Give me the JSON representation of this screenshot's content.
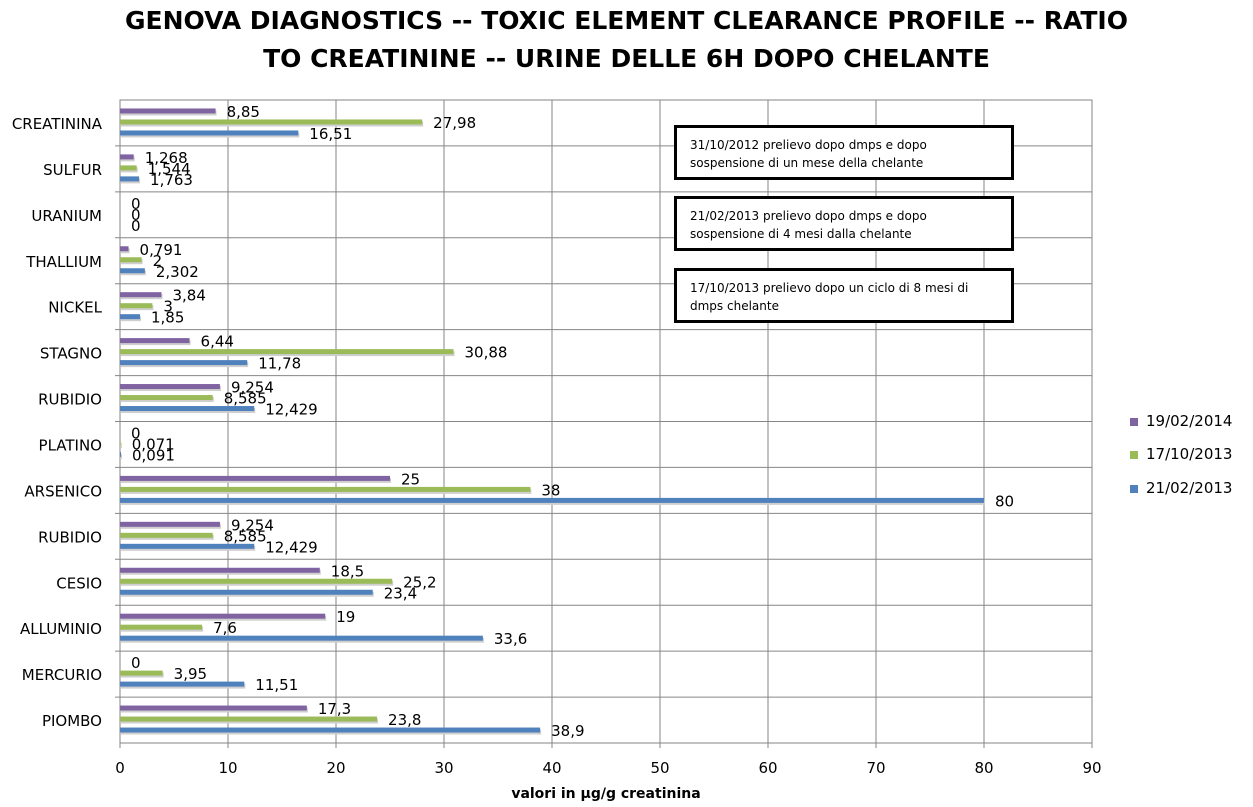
{
  "chart_data": {
    "type": "bar",
    "orientation": "horizontal",
    "title": "GENOVA DIAGNOSTICS -- TOXIC ELEMENT CLEARANCE PROFILE -- RATIO TO CREATININE -- URINE DELLE 6H DOPO CHELANTE",
    "title_lines": [
      "GENOVA DIAGNOSTICS -- TOXIC ELEMENT CLEARANCE PROFILE -- RATIO",
      "TO CREATININE -- URINE DELLE 6H DOPO CHELANTE"
    ],
    "xlabel": "valori in µg/g creatinina",
    "ylabel": "",
    "xlim": [
      0,
      90
    ],
    "xticks": [
      0,
      10,
      20,
      30,
      40,
      50,
      60,
      70,
      80,
      90
    ],
    "grid": true,
    "legend_position": "right",
    "categories": [
      "CREATININA",
      "SULFUR",
      "URANIUM",
      "THALLIUM",
      "NICKEL",
      "STAGNO",
      "RUBIDIO",
      "PLATINO",
      "ARSENICO",
      "RUBIDIO",
      "CESIO",
      "ALLUMINIO",
      "MERCURIO",
      "PIOMBO"
    ],
    "series": [
      {
        "name": "19/02/2014",
        "color": "#8064A2",
        "values": [
          8.85,
          1.268,
          0,
          0.791,
          3.84,
          6.44,
          9.254,
          0,
          25,
          9.254,
          18.5,
          19,
          0,
          17.3
        ],
        "labels": [
          "8,85",
          "1,268",
          "0",
          "0,791",
          "3,84",
          "6,44",
          "9,254",
          "0",
          "25",
          "9,254",
          "18,5",
          "19",
          "0",
          "17,3"
        ]
      },
      {
        "name": "17/10/2013",
        "color": "#9BBB59",
        "values": [
          27.98,
          1.544,
          0,
          2,
          3,
          30.88,
          8.585,
          0.071,
          38,
          8.585,
          25.2,
          7.6,
          3.95,
          23.8
        ],
        "labels": [
          "27,98",
          "1,544",
          "0",
          "2",
          "3",
          "30,88",
          "8,585",
          "0,071",
          "38",
          "8,585",
          "25,2",
          "7,6",
          "3,95",
          "23,8"
        ]
      },
      {
        "name": "21/02/2013",
        "color": "#4F81BD",
        "values": [
          16.51,
          1.763,
          0,
          2.302,
          1.85,
          11.78,
          12.429,
          0.091,
          80,
          12.429,
          23.4,
          33.6,
          11.51,
          38.9
        ],
        "labels": [
          "16,51",
          "1,763",
          "0",
          "2,302",
          "1,85",
          "11,78",
          "12,429",
          "0,091",
          "80",
          "12,429",
          "23,4",
          "33,6",
          "11,51",
          "38,9"
        ]
      }
    ],
    "legend_order": [
      "19/02/2014",
      "17/10/2013",
      "21/02/2013"
    ],
    "annotations": [
      {
        "lines": [
          "31/10/2012 prelievo dopo dmps e dopo",
          "sospensione di un mese della chelante"
        ],
        "border_color": "#C0504D"
      },
      {
        "lines": [
          "21/02/2013 prelievo dopo dmps e dopo",
          "sospensione di 4 mesi dalla chelante"
        ],
        "border_color": "#4BACC6"
      },
      {
        "lines": [
          "17/10/2013 prelievo dopo un ciclo di 8 mesi di",
          "dmps chelante"
        ],
        "border_color": "#F79646"
      }
    ]
  }
}
